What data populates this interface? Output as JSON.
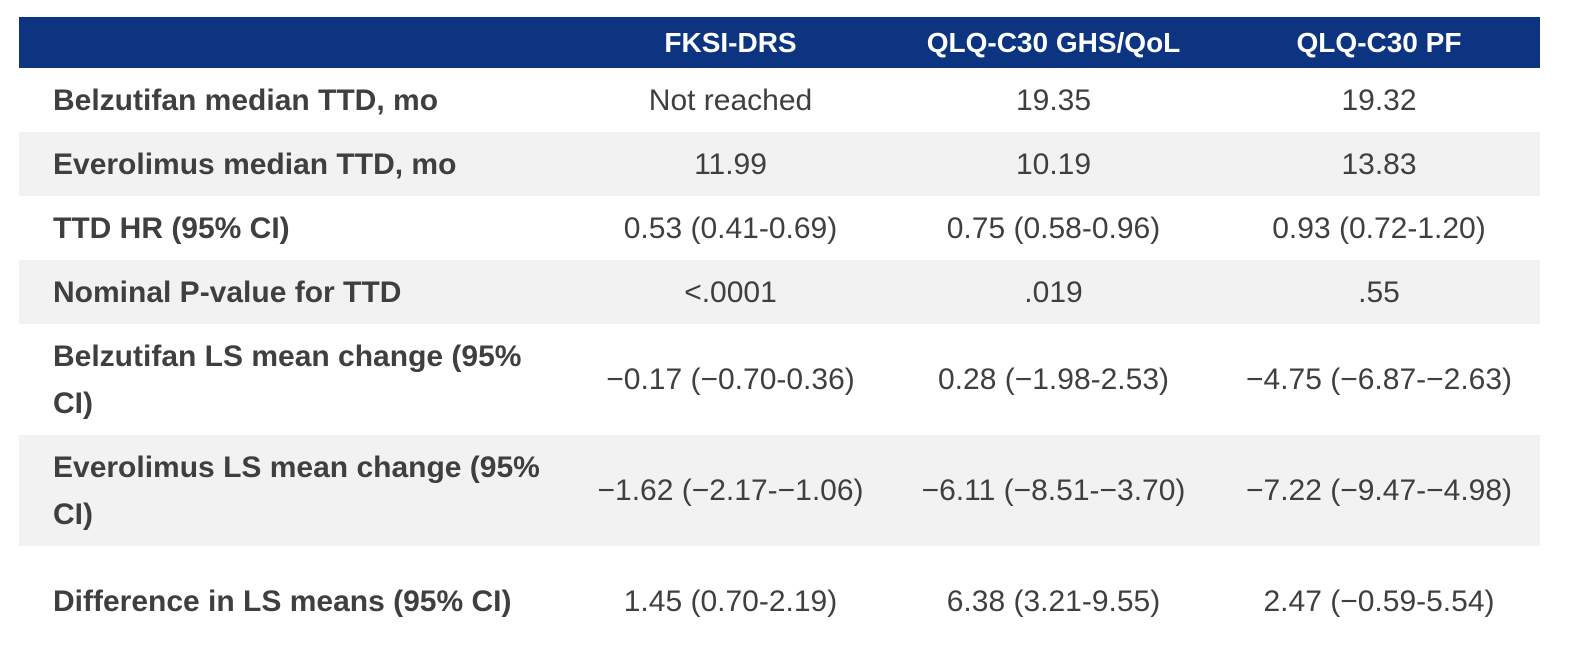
{
  "header": {
    "corner": "",
    "columns": [
      "FKSI-DRS",
      "QLQ-C30 GHS/QoL",
      "QLQ-C30 PF"
    ]
  },
  "rows": [
    {
      "label": "Belzutifan median TTD, mo",
      "values": [
        "Not reached",
        "19.35",
        "19.32"
      ]
    },
    {
      "label": "Everolimus median TTD, mo",
      "values": [
        "11.99",
        "10.19",
        "13.83"
      ]
    },
    {
      "label": "TTD HR (95% CI)",
      "values": [
        "0.53 (0.41-0.69)",
        "0.75 (0.58-0.96)",
        "0.93 (0.72-1.20)"
      ]
    },
    {
      "label": "Nominal P-value for TTD",
      "values": [
        "<.0001",
        ".019",
        ".55"
      ]
    },
    {
      "label": "Belzutifan LS mean change (95% CI)",
      "values": [
        "−0.17 (−0.70-0.36)",
        "0.28 (−1.98-2.53)",
        "−4.75 (−6.87-−2.63)"
      ]
    },
    {
      "label": "Everolimus LS mean change (95% CI)",
      "values": [
        "−1.62 (−2.17-−1.06)",
        "−6.11 (−8.51-−3.70)",
        "−7.22 (−9.47-−4.98)"
      ]
    },
    {
      "label": "Difference in LS means (95% CI)",
      "values": [
        "1.45 (0.70-2.19)",
        "6.38 (3.21-9.55)",
        "2.47 (−0.59-5.54)"
      ]
    }
  ],
  "colors": {
    "header_bg": "#0c3480",
    "header_text": "#ffffff",
    "row_shade": "#f2f2f2",
    "row_light": "#ffffff",
    "body_text": "#3f3f3f"
  }
}
